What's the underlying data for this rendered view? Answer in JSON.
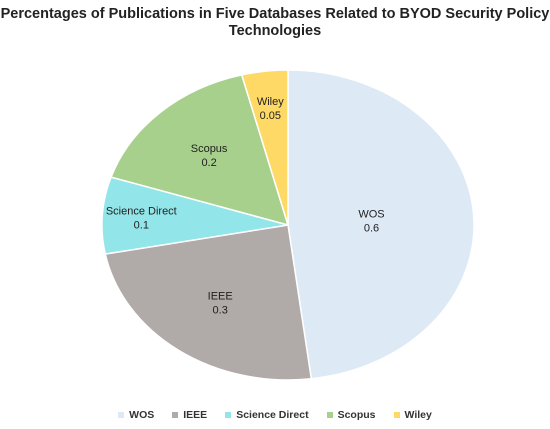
{
  "chart_data": {
    "type": "pie",
    "title": "Percentages of Publications in Five Databases Related to BYOD Security Policy Technologies",
    "legend_position": "bottom",
    "slices": [
      {
        "name": "WOS",
        "value": 0.6,
        "value_label": "0.6",
        "color": "#dde9f5"
      },
      {
        "name": "IEEE",
        "value": 0.3,
        "value_label": "0.3",
        "color": "#b0aaa8"
      },
      {
        "name": "Science Direct",
        "value": 0.1,
        "value_label": "0.1",
        "color": "#92e5e8"
      },
      {
        "name": "Scopus",
        "value": 0.2,
        "value_label": "0.2",
        "color": "#a7d08c"
      },
      {
        "name": "Wiley",
        "value": 0.05,
        "value_label": "0.05",
        "color": "#ffd966"
      }
    ]
  }
}
